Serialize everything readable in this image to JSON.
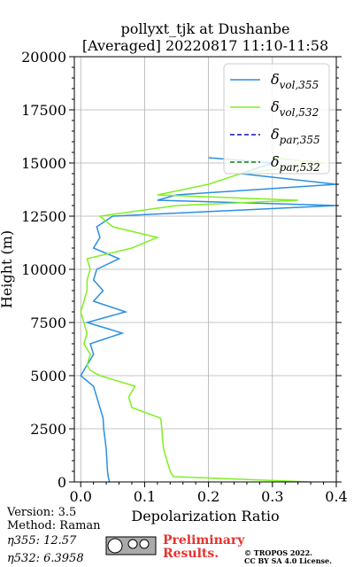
{
  "chart_data": {
    "type": "line",
    "title": "pollyxt_tjk at Dushanbe",
    "subtitle": "[Averaged] 20220817 11:10-11:58",
    "xlabel": "Depolarization Ratio",
    "ylabel": "Height (m)",
    "y": [
      0,
      250,
      500,
      1000,
      1500,
      2000,
      2500,
      3000,
      3500,
      4000,
      4500,
      5000,
      5250,
      5500,
      6000,
      6500,
      7000,
      7500,
      8000,
      8500,
      9000,
      9500,
      10000,
      10500,
      11000,
      11500,
      12000,
      12500,
      13000,
      13250,
      13500,
      14000,
      14500,
      15000,
      15250
    ],
    "series": [
      {
        "name": "δvol,355",
        "color": "#2b8fe0",
        "dash": false,
        "values": [
          0.045,
          0.043,
          0.042,
          0.041,
          0.04,
          0.038,
          0.036,
          0.035,
          0.03,
          0.025,
          0.02,
          0.0,
          0.005,
          0.01,
          0.02,
          0.015,
          0.065,
          0.01,
          0.07,
          0.02,
          0.035,
          0.02,
          0.025,
          0.06,
          0.02,
          0.03,
          0.025,
          0.05,
          0.4,
          0.12,
          0.15,
          0.4,
          0.25,
          0.3,
          0.2
        ]
      },
      {
        "name": "δvol,532",
        "color": "#80f020",
        "dash": false,
        "values": [
          0.36,
          0.145,
          0.14,
          0.135,
          0.13,
          0.128,
          0.127,
          0.125,
          0.08,
          0.075,
          0.085,
          0.03,
          0.015,
          0.01,
          0.015,
          0.005,
          0.01,
          0.005,
          0.0,
          0.005,
          0.01,
          0.01,
          0.015,
          0.01,
          0.08,
          0.12,
          0.05,
          0.03,
          0.15,
          0.34,
          0.12,
          0.2,
          0.25,
          0.38,
          0.3
        ]
      },
      {
        "name": "δpar,355",
        "color": "#1010c0",
        "dash": true,
        "values": [
          null,
          null,
          null,
          null,
          null,
          null,
          null,
          null,
          null,
          null,
          null,
          null,
          null,
          null,
          null,
          null,
          null,
          null,
          null,
          null,
          null,
          null,
          null,
          null,
          null,
          null,
          null,
          null,
          null,
          null,
          null,
          null,
          null,
          null,
          null
        ]
      },
      {
        "name": "δpar,532",
        "color": "#108010",
        "dash": true,
        "values": [
          null,
          null,
          null,
          null,
          null,
          null,
          null,
          null,
          null,
          null,
          null,
          null,
          null,
          null,
          null,
          null,
          null,
          null,
          null,
          null,
          null,
          null,
          null,
          null,
          null,
          null,
          null,
          null,
          null,
          null,
          null,
          null,
          null,
          null,
          null
        ]
      }
    ],
    "xlim": [
      -0.01,
      0.4
    ],
    "xticks": [
      {
        "value": 0,
        "label": "0.0"
      },
      0.1,
      0.2,
      0.3,
      0.4
    ],
    "ylim": [
      0,
      20000
    ],
    "yticks": [
      0,
      2500,
      5000,
      7500,
      10000,
      12500,
      15000,
      17500,
      20000
    ],
    "grid": true,
    "legend": "upper right",
    "annotations": [
      "Version: 3.5",
      "Method: Raman",
      "η355:  12.57",
      "η532: 6.3958",
      "Preliminary",
      "Results.",
      "© TROPOS 2022.",
      "CC BY SA 4.0 License."
    ]
  }
}
